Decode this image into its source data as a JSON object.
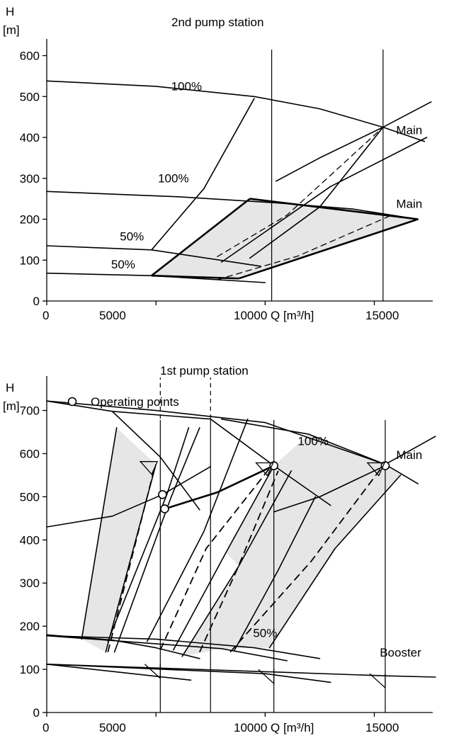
{
  "chart_data": [
    {
      "type": "line",
      "title": "2nd pump station",
      "ylabel_top": "H",
      "ylabel_unit": "[m]",
      "xlabel": "Q [m³/h]",
      "xlim": [
        0,
        18000
      ],
      "ylim": [
        0,
        620
      ],
      "x_ticks": [
        0,
        5000,
        10000,
        15000
      ],
      "y_ticks": [
        0,
        100,
        200,
        300,
        400,
        500,
        600
      ],
      "vertical_lines": [
        10300,
        15400
      ],
      "shaded_regions": [
        [
          [
            4800,
            60
          ],
          [
            9300,
            250
          ],
          [
            17000,
            200
          ],
          [
            8800,
            55
          ]
        ]
      ],
      "curve_labels": [
        {
          "text": "100%",
          "x": 6400,
          "y": 515
        },
        {
          "text": "100%",
          "x": 5800,
          "y": 290
        },
        {
          "text": "50%",
          "x": 3900,
          "y": 148
        },
        {
          "text": "50%",
          "x": 3500,
          "y": 80
        },
        {
          "text": "Main",
          "x": 16600,
          "y": 408
        },
        {
          "text": "Main",
          "x": 16600,
          "y": 228
        }
      ],
      "series": [
        {
          "style": "solid",
          "points": [
            [
              0,
              538
            ],
            [
              5000,
              525
            ],
            [
              9500,
              500
            ],
            [
              12500,
              470
            ],
            [
              15400,
              425
            ],
            [
              17300,
              390
            ]
          ]
        },
        {
          "style": "solid",
          "points": [
            [
              0,
              268
            ],
            [
              6000,
              255
            ],
            [
              10500,
              240
            ],
            [
              14000,
              225
            ],
            [
              17000,
              200
            ]
          ]
        },
        {
          "style": "solid",
          "points": [
            [
              0,
              135
            ],
            [
              4800,
              125
            ],
            [
              9800,
              85
            ]
          ]
        },
        {
          "style": "solid",
          "points": [
            [
              0,
              68
            ],
            [
              4800,
              62
            ],
            [
              10000,
              45
            ]
          ]
        },
        {
          "style": "solid",
          "points": [
            [
              4800,
              125
            ],
            [
              7200,
              275
            ],
            [
              9500,
              495
            ]
          ]
        },
        {
          "style": "thick",
          "points": [
            [
              4800,
              62
            ],
            [
              9300,
              250
            ]
          ]
        },
        {
          "style": "thick",
          "points": [
            [
              9300,
              250
            ],
            [
              17000,
              200
            ]
          ]
        },
        {
          "style": "thick",
          "points": [
            [
              8800,
              55
            ],
            [
              17000,
              200
            ]
          ]
        },
        {
          "style": "thick",
          "points": [
            [
              4800,
              62
            ],
            [
              8800,
              55
            ]
          ]
        },
        {
          "style": "solid",
          "points": [
            [
              9300,
              105
            ],
            [
              12500,
              230
            ],
            [
              15400,
              425
            ],
            [
              17600,
              487
            ]
          ]
        },
        {
          "style": "solid",
          "points": [
            [
              10500,
              293
            ],
            [
              12500,
              350
            ],
            [
              15400,
              425
            ]
          ]
        },
        {
          "style": "solid",
          "points": [
            [
              9300,
              105
            ],
            [
              9300,
              105
            ]
          ]
        },
        {
          "style": "solid",
          "points": [
            [
              8000,
              95
            ],
            [
              13000,
              280
            ],
            [
              17400,
              400
            ]
          ]
        },
        {
          "style": "dash",
          "points": [
            [
              7800,
              108
            ],
            [
              11000,
              210
            ],
            [
              15400,
              425
            ]
          ]
        },
        {
          "style": "dash",
          "points": [
            [
              7800,
              52
            ],
            [
              11500,
              110
            ],
            [
              15800,
              210
            ]
          ]
        }
      ]
    },
    {
      "type": "line",
      "title": "1st pump station",
      "ylabel_top": "H",
      "ylabel_unit": "[m]",
      "xlabel": "Q [m³/h]",
      "xlim": [
        0,
        18000
      ],
      "ylim": [
        0,
        760
      ],
      "x_ticks": [
        0,
        5000,
        10000,
        15000
      ],
      "y_ticks": [
        0,
        100,
        200,
        300,
        400,
        500,
        600,
        700
      ],
      "legend": {
        "label": "Operating points",
        "marker": "circle",
        "placement": "top-left"
      },
      "vertical_lines_solid": [
        5200,
        7500,
        10400,
        15500
      ],
      "vertical_lines_dashed": [
        5200,
        7500
      ],
      "operating_points": [
        [
          5300,
          505
        ],
        [
          5400,
          472
        ],
        [
          10400,
          572
        ],
        [
          15500,
          572
        ]
      ],
      "curve_labels": [
        {
          "text": "100%",
          "x": 12200,
          "y": 620
        },
        {
          "text": "Main",
          "x": 16600,
          "y": 588
        },
        {
          "text": "50%",
          "x": 10000,
          "y": 175
        },
        {
          "text": "Booster",
          "x": 16200,
          "y": 130
        }
      ],
      "series": [
        {
          "style": "solid",
          "points": [
            [
              0,
              722
            ],
            [
              5000,
              700
            ],
            [
              10000,
              672
            ],
            [
              15500,
              575
            ],
            [
              17000,
              530
            ]
          ]
        },
        {
          "style": "solid",
          "points": [
            [
              0,
              722
            ],
            [
              3000,
              698
            ],
            [
              5200,
              592
            ],
            [
              7000,
              470
            ]
          ]
        },
        {
          "style": "solid",
          "points": [
            [
              3000,
              698
            ],
            [
              7500,
              680
            ],
            [
              10400,
              572
            ],
            [
              13000,
              480
            ]
          ]
        },
        {
          "style": "solid",
          "points": [
            [
              8000,
              680
            ],
            [
              12000,
              645
            ],
            [
              15500,
              575
            ],
            [
              17800,
              640
            ]
          ]
        },
        {
          "style": "solid",
          "points": [
            [
              0,
              430
            ],
            [
              3000,
              455
            ],
            [
              5300,
              505
            ],
            [
              7500,
              570
            ]
          ]
        },
        {
          "style": "thick",
          "points": [
            [
              5400,
              472
            ],
            [
              7800,
              510
            ],
            [
              10400,
              572
            ]
          ]
        },
        {
          "style": "solid",
          "points": [
            [
              10400,
              465
            ],
            [
              12500,
              500
            ],
            [
              15500,
              572
            ]
          ]
        },
        {
          "style": "solid",
          "points": [
            [
              0,
              180
            ],
            [
              3000,
              168
            ],
            [
              5000,
              150
            ],
            [
              7000,
              125
            ]
          ]
        },
        {
          "style": "solid",
          "points": [
            [
              0,
              178
            ],
            [
              5000,
              170
            ],
            [
              9500,
              150
            ],
            [
              12500,
              125
            ]
          ]
        },
        {
          "style": "solid",
          "points": [
            [
              0,
              178
            ],
            [
              8000,
              148
            ],
            [
              11000,
              120
            ]
          ]
        },
        {
          "style": "solid",
          "points": [
            [
              0,
              112
            ],
            [
              6600,
              75
            ]
          ]
        },
        {
          "style": "solid",
          "points": [
            [
              0,
              112
            ],
            [
              10000,
              90
            ],
            [
              13000,
              70
            ]
          ]
        },
        {
          "style": "solid",
          "points": [
            [
              0,
              112
            ],
            [
              15500,
              85
            ],
            [
              17800,
              82
            ]
          ]
        },
        {
          "style": "solid",
          "points": [
            [
              1600,
              170
            ],
            [
              3200,
              660
            ]
          ]
        },
        {
          "style": "solid",
          "points": [
            [
              2700,
              140
            ],
            [
              5000,
              575
            ]
          ]
        },
        {
          "style": "solid",
          "points": [
            [
              2800,
              165
            ],
            [
              5500,
              505
            ],
            [
              6500,
              660
            ]
          ]
        },
        {
          "style": "solid",
          "points": [
            [
              3100,
              140
            ],
            [
              5700,
              500
            ],
            [
              7000,
              660
            ]
          ]
        },
        {
          "style": "solid",
          "points": [
            [
              4600,
              165
            ],
            [
              7200,
              420
            ],
            [
              9200,
              680
            ]
          ]
        },
        {
          "style": "solid",
          "points": [
            [
              5800,
              145
            ],
            [
              8200,
              370
            ],
            [
              10400,
              572
            ]
          ]
        },
        {
          "style": "solid",
          "points": [
            [
              6200,
              130
            ],
            [
              8800,
              340
            ],
            [
              11200,
              560
            ]
          ]
        },
        {
          "style": "solid",
          "points": [
            [
              8600,
              145
            ],
            [
              10600,
              330
            ],
            [
              12300,
              500
            ]
          ]
        },
        {
          "style": "solid",
          "points": [
            [
              10200,
              150
            ],
            [
              13200,
              380
            ],
            [
              16200,
              550
            ]
          ]
        },
        {
          "style": "dash2",
          "points": [
            [
              2800,
              140
            ],
            [
              4900,
              560
            ]
          ]
        },
        {
          "style": "dash2",
          "points": [
            [
              5200,
              145
            ],
            [
              7300,
              380
            ],
            [
              10300,
              572
            ]
          ]
        },
        {
          "style": "dash2",
          "points": [
            [
              7000,
              140
            ],
            [
              8700,
              330
            ],
            [
              10600,
              560
            ]
          ]
        },
        {
          "style": "dash2",
          "points": [
            [
              8400,
              140
            ],
            [
              12100,
              350
            ],
            [
              15400,
              572
            ]
          ]
        }
      ],
      "shaded_regions": [
        [
          [
            1600,
            170
          ],
          [
            3200,
            660
          ],
          [
            5000,
            575
          ],
          [
            2700,
            140
          ]
        ],
        [
          [
            8200,
            370
          ],
          [
            10400,
            572
          ],
          [
            11200,
            560
          ],
          [
            8800,
            340
          ]
        ],
        [
          [
            6200,
            130
          ],
          [
            8800,
            340
          ],
          [
            10400,
            572
          ],
          [
            12000,
            645
          ],
          [
            15500,
            575
          ],
          [
            16200,
            550
          ],
          [
            13200,
            380
          ],
          [
            10200,
            150
          ],
          [
            8000,
            148
          ]
        ]
      ]
    }
  ],
  "chart1": {
    "title": "2nd pump station",
    "h_label": "H",
    "unit_label": "[m]",
    "x_tick_0": "0",
    "x_tick_1": "5000",
    "x_tick_2": "10000 Q [m³/h]",
    "x_tick_3": "15000"
  },
  "chart2": {
    "title": "1st pump station",
    "h_label": "H",
    "unit_label": "[m]",
    "legend_label": "Operating points",
    "x_tick_0": "0",
    "x_tick_1": "5000",
    "x_tick_2": "10000 Q [m³/h]",
    "x_tick_3": "15000"
  }
}
